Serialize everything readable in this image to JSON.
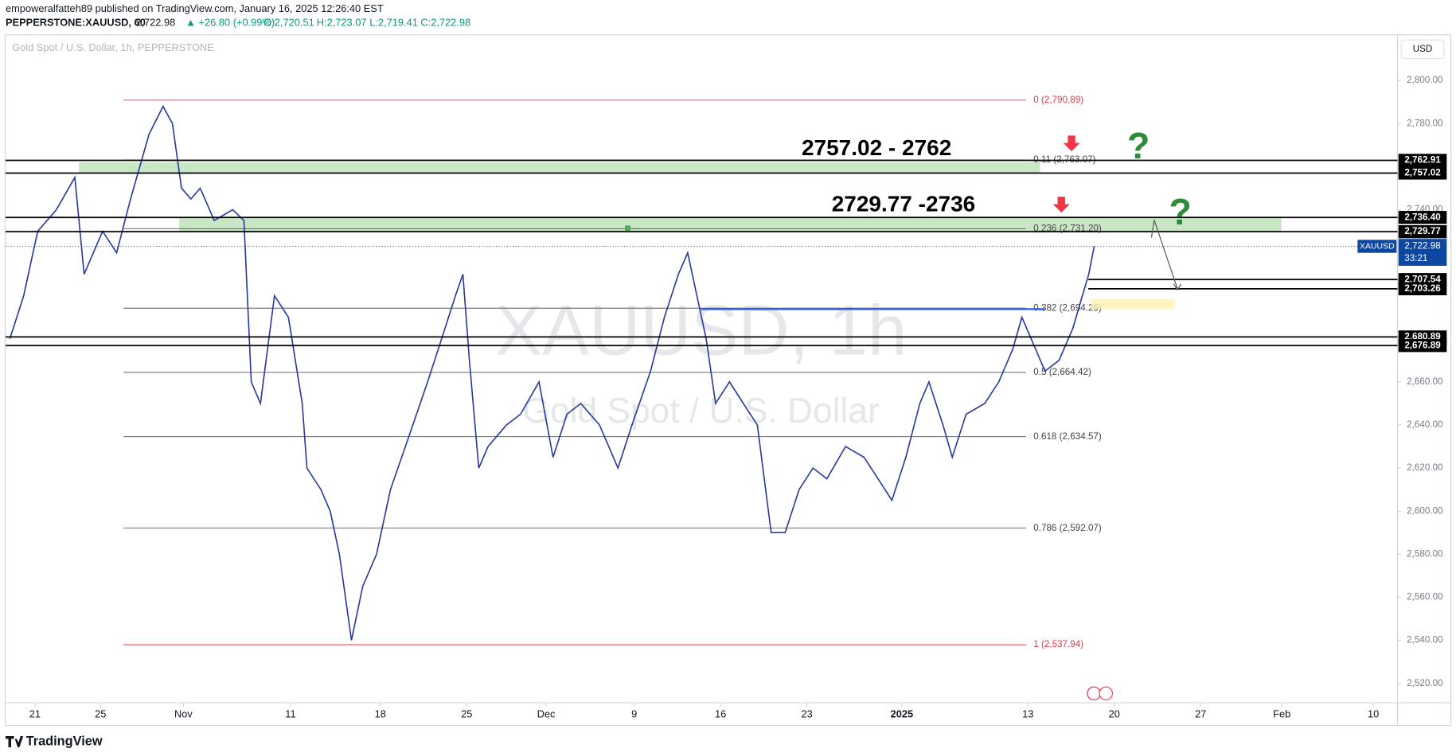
{
  "header": {
    "publisher": "empoweralfatteh89 published on TradingView.com, January 16, 2025 12:26:40 EST",
    "symbol_line": "PEPPERSTONE:XAUUSD, 60",
    "last": "2,722.98",
    "change": "▲ +26.80 (+0.99%)",
    "ohlc": [
      "O:2,720.51",
      "H:2,723.07",
      "L:2,719.41",
      "C:2,722.98"
    ]
  },
  "footer": {
    "brand": "TradingView"
  },
  "chart_data": {
    "type": "line",
    "title": "Gold Spot / U.S. Dollar, 1h, PEPPERSTONE",
    "currency": "USD",
    "watermark": "XAUUSD, 1h",
    "watermark_sub": "Gold Spot / U.S. Dollar",
    "xlim": [
      -1.7,
      78.9
    ],
    "ylim": [
      2511,
      2821
    ],
    "xticks": [
      {
        "value": 0,
        "label": "21"
      },
      {
        "value": 3.8,
        "label": "25"
      },
      {
        "value": 8.6,
        "label": "Nov"
      },
      {
        "value": 14.8,
        "label": "11"
      },
      {
        "value": 20,
        "label": "18"
      },
      {
        "value": 25,
        "label": "25"
      },
      {
        "value": 29.6,
        "label": "Dec"
      },
      {
        "value": 34.7,
        "label": "9"
      },
      {
        "value": 39.7,
        "label": "16"
      },
      {
        "value": 44.7,
        "label": "23"
      },
      {
        "value": 50.2,
        "label": "2025"
      },
      {
        "value": 57.5,
        "label": "13"
      },
      {
        "value": 62.5,
        "label": "20"
      },
      {
        "value": 67.5,
        "label": "27"
      },
      {
        "value": 72.2,
        "label": "Feb"
      },
      {
        "value": 77.5,
        "label": "10"
      }
    ],
    "yticks": [
      {
        "value": 2800,
        "label": "2,800.00"
      },
      {
        "value": 2780,
        "label": "2,780.00"
      },
      {
        "value": 2740,
        "label": "2,740.00"
      },
      {
        "value": 2660,
        "label": "2,660.00"
      },
      {
        "value": 2640,
        "label": "2,640.00"
      },
      {
        "value": 2620,
        "label": "2,620.00"
      },
      {
        "value": 2600,
        "label": "2,600.00"
      },
      {
        "value": 2580,
        "label": "2,580.00"
      },
      {
        "value": 2560,
        "label": "2,560.00"
      },
      {
        "value": 2540,
        "label": "2,540.00"
      },
      {
        "value": 2520,
        "label": "2,520.00"
      }
    ],
    "series": [
      {
        "name": "XAUUSD",
        "color": "#2a3a9c",
        "x": [
          -1.45,
          -0.65,
          0.16,
          1.24,
          2.31,
          2.85,
          3.92,
          4.73,
          5.54,
          6.61,
          7.42,
          7.96,
          8.49,
          9.03,
          9.57,
          10.38,
          11.45,
          12.1,
          12.53,
          13.06,
          13.87,
          14.68,
          15.48,
          15.75,
          16.56,
          17.1,
          17.63,
          18.33,
          18.98,
          19.78,
          20.59,
          21.67,
          22.74,
          23.55,
          24.35,
          24.78,
          25.16,
          25.7,
          26.24,
          27.31,
          28.12,
          29.19,
          30,
          30.81,
          31.61,
          32.69,
          33.76,
          34.57,
          35.65,
          36.45,
          37.26,
          37.8,
          38.33,
          38.87,
          39.41,
          40.22,
          41.02,
          41.83,
          42.63,
          43.44,
          44.25,
          45.05,
          45.86,
          46.94,
          48.01,
          48.82,
          49.62,
          50.43,
          51.24,
          51.77,
          52.58,
          53.12,
          53.92,
          55,
          55.81,
          56.61,
          57.15,
          57.69,
          58.49,
          59.3,
          60.11,
          60.65,
          61.02,
          61.34
        ],
        "values": [
          2680,
          2700,
          2730,
          2740,
          2755,
          2710,
          2730,
          2720,
          2745,
          2775,
          2788,
          2780,
          2750,
          2745,
          2750,
          2735,
          2740,
          2735,
          2660,
          2650,
          2700,
          2690,
          2650,
          2620,
          2610,
          2600,
          2580,
          2540,
          2565,
          2580,
          2610,
          2635,
          2660,
          2680,
          2700,
          2710,
          2670,
          2620,
          2630,
          2640,
          2645,
          2660,
          2625,
          2645,
          2650,
          2640,
          2620,
          2640,
          2665,
          2690,
          2710,
          2720,
          2700,
          2680,
          2650,
          2660,
          2650,
          2640,
          2590,
          2590,
          2610,
          2620,
          2615,
          2630,
          2625,
          2615,
          2605,
          2625,
          2650,
          2660,
          2640,
          2625,
          2645,
          2650,
          2660,
          2675,
          2690,
          2680,
          2665,
          2670,
          2685,
          2700,
          2710,
          2722.98
        ]
      }
    ],
    "current_price": {
      "symbol": "XAUUSD",
      "value": 2722.98,
      "label": "2,722.98",
      "countdown": "33:21"
    },
    "levels": [
      {
        "value": 2762.91,
        "label": "2,762.91"
      },
      {
        "value": 2757.02,
        "label": "2,757.02"
      },
      {
        "value": 2736.4,
        "label": "2,736.40"
      },
      {
        "value": 2729.77,
        "label": "2,729.77"
      },
      {
        "value": 2707.54,
        "label": "2,707.54"
      },
      {
        "value": 2703.26,
        "label": "2,703.26"
      },
      {
        "value": 2680.89,
        "label": "2,680.89"
      },
      {
        "value": 2676.89,
        "label": "2,676.89"
      }
    ],
    "fib_levels": [
      {
        "value": 2790.89,
        "label": "0 (2,790.89)"
      },
      {
        "value": 2763.07,
        "label": "0.11 (2,763.07)"
      },
      {
        "value": 2731.2,
        "label": "0.236 (2,731.20)"
      },
      {
        "value": 2694.26,
        "label": "0.382 (2,694.26)"
      },
      {
        "value": 2664.42,
        "label": "0.5 (2,664.42)"
      },
      {
        "value": 2634.57,
        "label": "0.618 (2,634.57)"
      },
      {
        "value": 2592.07,
        "label": "0.786 (2,592.07)"
      },
      {
        "value": 2537.94,
        "label": "1 (2,537.94)"
      }
    ],
    "zones": [
      {
        "label": "2757.02 - 2762",
        "low": 2757.02,
        "high": 2762
      },
      {
        "label": "2729.77 -2736",
        "low": 2729.77,
        "high": 2736
      }
    ],
    "markers": [
      "?",
      "?"
    ]
  }
}
